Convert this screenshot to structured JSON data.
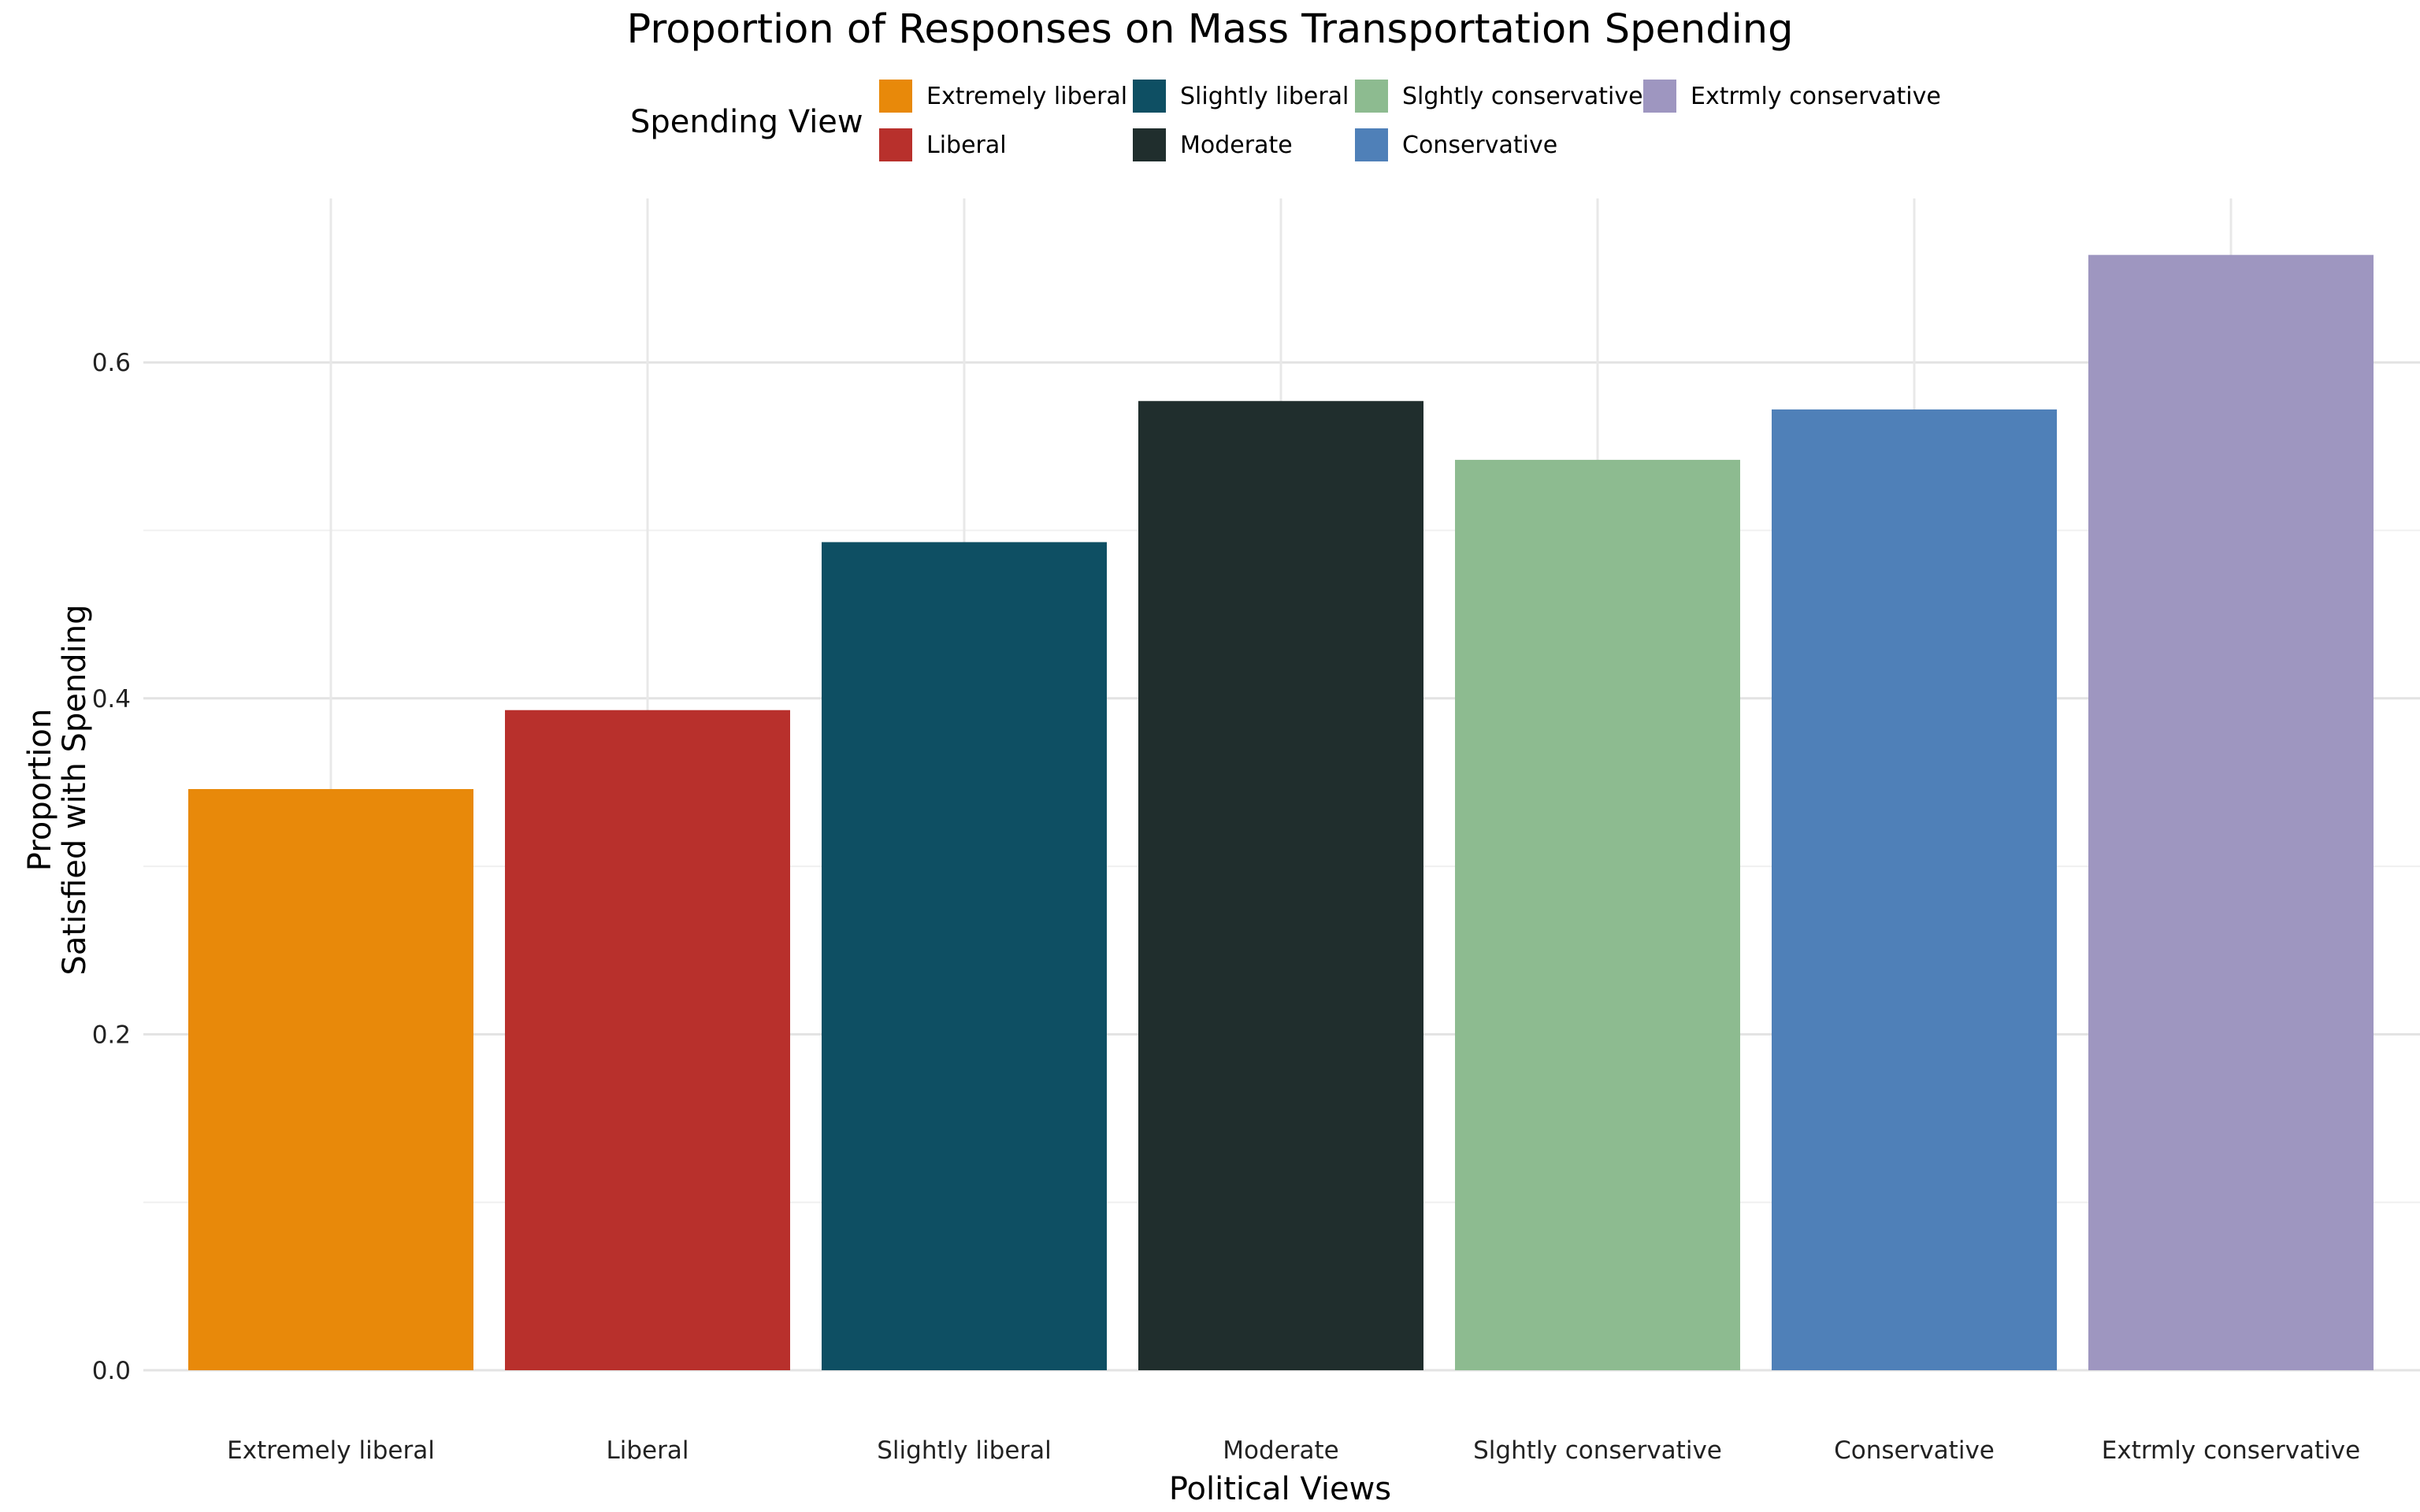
{
  "chart_data": {
    "type": "bar",
    "title": "Proportion of Responses on Mass Transportation Spending",
    "xlabel": "Political Views",
    "ylabel_lines": [
      "Proportion",
      "Satisfied with Spending"
    ],
    "categories": [
      "Extremely liberal",
      "Liberal",
      "Slightly liberal",
      "Moderate",
      "Slghtly conservative",
      "Conservative",
      "Extrmly conservative"
    ],
    "values": [
      0.346,
      0.393,
      0.493,
      0.577,
      0.542,
      0.572,
      0.664
    ],
    "colors": [
      "#E8890A",
      "#B8302C",
      "#0E4F63",
      "#202E2D",
      "#8DBB90",
      "#4F80B8",
      "#9E96C0"
    ],
    "ylim": [
      0,
      0.7
    ],
    "y_ticks": [
      0.0,
      0.2,
      0.4,
      0.6
    ],
    "y_tick_labels": [
      "0.0",
      "0.2",
      "0.4",
      "0.6"
    ],
    "grid": true,
    "legend": {
      "title": "Spending View",
      "placement": "top",
      "entries": [
        "Extremely liberal",
        "Liberal",
        "Slightly liberal",
        "Moderate",
        "Slghtly conservative",
        "Conservative",
        "Extrmly conservative"
      ]
    }
  }
}
